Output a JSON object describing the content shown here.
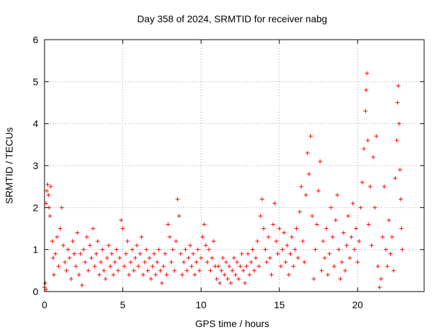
{
  "chart_data": {
    "type": "scatter",
    "title": "Day 358 of 2024, SRMTID for receiver nabg",
    "xlabel": "GPS time / hours",
    "ylabel": "SRMTID / TECUs",
    "xlim": [
      0,
      24.25
    ],
    "ylim": [
      0,
      6
    ],
    "xticks": [
      0,
      5,
      10,
      15,
      20
    ],
    "xtick_labels": [
      "0",
      "5",
      "10",
      "15",
      "20"
    ],
    "yticks": [
      0,
      1,
      2,
      3,
      4,
      5,
      6
    ],
    "ytick_labels": [
      "0",
      "1",
      "2",
      "3",
      "4",
      "5",
      "6"
    ],
    "grid": true,
    "marker": "+",
    "color": "#ff0000",
    "series": [
      {
        "name": "SRMTID",
        "points": [
          [
            0.0,
            0.1
          ],
          [
            0.05,
            0.2
          ],
          [
            0.1,
            0.05
          ],
          [
            0.1,
            2.1
          ],
          [
            0.15,
            2.4
          ],
          [
            0.2,
            2.55
          ],
          [
            0.25,
            2.3
          ],
          [
            0.3,
            2.0
          ],
          [
            0.35,
            1.8
          ],
          [
            0.4,
            2.5
          ],
          [
            0.5,
            1.2
          ],
          [
            0.55,
            0.8
          ],
          [
            0.6,
            0.4
          ],
          [
            0.7,
            0.9
          ],
          [
            0.8,
            1.3
          ],
          [
            0.9,
            0.6
          ],
          [
            1.0,
            1.5
          ],
          [
            1.1,
            2.0
          ],
          [
            1.2,
            1.1
          ],
          [
            1.3,
            0.7
          ],
          [
            1.4,
            0.5
          ],
          [
            1.5,
            1.0
          ],
          [
            1.6,
            0.8
          ],
          [
            1.7,
            0.3
          ],
          [
            1.8,
            1.2
          ],
          [
            1.9,
            0.9
          ],
          [
            2.0,
            0.6
          ],
          [
            2.1,
            1.4
          ],
          [
            2.2,
            0.4
          ],
          [
            2.3,
            0.9
          ],
          [
            2.4,
            0.15
          ],
          [
            2.5,
            1.0
          ],
          [
            2.6,
            0.7
          ],
          [
            2.7,
            1.3
          ],
          [
            2.8,
            0.5
          ],
          [
            2.9,
            1.1
          ],
          [
            3.0,
            0.8
          ],
          [
            3.1,
            1.5
          ],
          [
            3.2,
            0.6
          ],
          [
            3.3,
            0.9
          ],
          [
            3.4,
            1.2
          ],
          [
            3.5,
            0.4
          ],
          [
            3.6,
            0.7
          ],
          [
            3.7,
            1.0
          ],
          [
            3.8,
            0.5
          ],
          [
            3.9,
            0.3
          ],
          [
            4.0,
            0.8
          ],
          [
            4.1,
            1.1
          ],
          [
            4.2,
            0.6
          ],
          [
            4.3,
            0.9
          ],
          [
            4.4,
            0.4
          ],
          [
            4.5,
            0.7
          ],
          [
            4.6,
            1.0
          ],
          [
            4.7,
            0.5
          ],
          [
            4.8,
            0.8
          ],
          [
            4.9,
            1.7
          ],
          [
            5.0,
            1.5
          ],
          [
            5.1,
            0.6
          ],
          [
            5.2,
            0.9
          ],
          [
            5.3,
            1.2
          ],
          [
            5.4,
            0.4
          ],
          [
            5.5,
            0.7
          ],
          [
            5.6,
            1.0
          ],
          [
            5.7,
            0.5
          ],
          [
            5.8,
            0.8
          ],
          [
            5.9,
            1.1
          ],
          [
            6.0,
            0.6
          ],
          [
            6.1,
            0.9
          ],
          [
            6.2,
            1.3
          ],
          [
            6.3,
            0.4
          ],
          [
            6.4,
            0.7
          ],
          [
            6.5,
            1.0
          ],
          [
            6.6,
            0.5
          ],
          [
            6.7,
            0.8
          ],
          [
            6.8,
            0.3
          ],
          [
            6.9,
            0.6
          ],
          [
            7.0,
            0.9
          ],
          [
            7.1,
            0.4
          ],
          [
            7.2,
            0.7
          ],
          [
            7.3,
            1.0
          ],
          [
            7.4,
            0.5
          ],
          [
            7.5,
            0.2
          ],
          [
            7.6,
            0.6
          ],
          [
            7.7,
            0.9
          ],
          [
            7.8,
            0.4
          ],
          [
            7.9,
            1.6
          ],
          [
            8.0,
            1.3
          ],
          [
            8.1,
            0.7
          ],
          [
            8.2,
            1.0
          ],
          [
            8.3,
            0.5
          ],
          [
            8.4,
            1.2
          ],
          [
            8.5,
            2.2
          ],
          [
            8.6,
            1.8
          ],
          [
            8.7,
            0.9
          ],
          [
            8.8,
            0.4
          ],
          [
            8.9,
            0.7
          ],
          [
            9.0,
            1.0
          ],
          [
            9.1,
            0.5
          ],
          [
            9.2,
            0.8
          ],
          [
            9.3,
            1.1
          ],
          [
            9.4,
            0.6
          ],
          [
            9.5,
            0.9
          ],
          [
            9.6,
            0.4
          ],
          [
            9.7,
            0.7
          ],
          [
            9.8,
            1.0
          ],
          [
            9.9,
            0.5
          ],
          [
            10.0,
            0.8
          ],
          [
            10.1,
            1.3
          ],
          [
            10.2,
            1.6
          ],
          [
            10.3,
            1.1
          ],
          [
            10.4,
            0.7
          ],
          [
            10.5,
            1.0
          ],
          [
            10.6,
            0.5
          ],
          [
            10.7,
            0.8
          ],
          [
            10.8,
            1.2
          ],
          [
            10.9,
            0.6
          ],
          [
            11.0,
            0.3
          ],
          [
            11.1,
            0.6
          ],
          [
            11.2,
            0.2
          ],
          [
            11.3,
            0.5
          ],
          [
            11.4,
            0.8
          ],
          [
            11.5,
            0.4
          ],
          [
            11.6,
            0.7
          ],
          [
            11.7,
            0.3
          ],
          [
            11.8,
            0.6
          ],
          [
            11.9,
            0.2
          ],
          [
            12.0,
            0.5
          ],
          [
            12.1,
            0.8
          ],
          [
            12.2,
            0.4
          ],
          [
            12.3,
            0.7
          ],
          [
            12.4,
            0.3
          ],
          [
            12.5,
            0.6
          ],
          [
            12.6,
            0.9
          ],
          [
            12.7,
            0.5
          ],
          [
            12.8,
            0.2
          ],
          [
            12.9,
            0.6
          ],
          [
            13.0,
            0.9
          ],
          [
            13.1,
            0.4
          ],
          [
            13.2,
            0.7
          ],
          [
            13.3,
            1.0
          ],
          [
            13.4,
            0.5
          ],
          [
            13.5,
            0.8
          ],
          [
            13.6,
            1.2
          ],
          [
            13.7,
            0.6
          ],
          [
            13.8,
            1.8
          ],
          [
            13.9,
            2.2
          ],
          [
            14.0,
            1.5
          ],
          [
            14.1,
            1.0
          ],
          [
            14.2,
            0.7
          ],
          [
            14.3,
            1.3
          ],
          [
            14.4,
            0.8
          ],
          [
            14.5,
            0.4
          ],
          [
            14.6,
            1.6
          ],
          [
            14.7,
            2.1
          ],
          [
            14.8,
            1.2
          ],
          [
            14.9,
            0.9
          ],
          [
            15.0,
            1.5
          ],
          [
            15.1,
            0.6
          ],
          [
            15.2,
            1.0
          ],
          [
            15.3,
            1.4
          ],
          [
            15.4,
            0.7
          ],
          [
            15.5,
            1.1
          ],
          [
            15.6,
            0.4
          ],
          [
            15.7,
            0.9
          ],
          [
            15.8,
            1.3
          ],
          [
            15.9,
            0.6
          ],
          [
            16.0,
            1.0
          ],
          [
            16.1,
            1.5
          ],
          [
            16.2,
            0.8
          ],
          [
            16.3,
            1.9
          ],
          [
            16.4,
            2.5
          ],
          [
            16.5,
            1.2
          ],
          [
            16.6,
            0.7
          ],
          [
            16.7,
            2.3
          ],
          [
            16.8,
            3.3
          ],
          [
            16.9,
            2.8
          ],
          [
            17.0,
            3.7
          ],
          [
            17.1,
            1.8
          ],
          [
            17.2,
            0.3
          ],
          [
            17.3,
            1.0
          ],
          [
            17.4,
            1.6
          ],
          [
            17.5,
            2.4
          ],
          [
            17.6,
            3.1
          ],
          [
            17.7,
            0.5
          ],
          [
            17.8,
            1.2
          ],
          [
            17.9,
            0.8
          ],
          [
            18.0,
            1.5
          ],
          [
            18.1,
            0.4
          ],
          [
            18.2,
            0.9
          ],
          [
            18.3,
            2.0
          ],
          [
            18.4,
            1.3
          ],
          [
            18.5,
            0.6
          ],
          [
            18.6,
            1.7
          ],
          [
            18.7,
            2.3
          ],
          [
            18.8,
            1.0
          ],
          [
            18.9,
            0.3
          ],
          [
            19.0,
            0.7
          ],
          [
            19.1,
            1.4
          ],
          [
            19.2,
            0.5
          ],
          [
            19.3,
            1.1
          ],
          [
            19.4,
            1.8
          ],
          [
            19.5,
            0.8
          ],
          [
            19.6,
            1.3
          ],
          [
            19.7,
            2.1
          ],
          [
            19.8,
            1.0
          ],
          [
            19.9,
            1.5
          ],
          [
            20.0,
            0.7
          ],
          [
            20.1,
            1.2
          ],
          [
            20.2,
            2.0
          ],
          [
            20.3,
            2.6
          ],
          [
            20.4,
            3.4
          ],
          [
            20.5,
            4.3
          ],
          [
            20.55,
            4.8
          ],
          [
            20.6,
            5.2
          ],
          [
            20.65,
            3.6
          ],
          [
            20.7,
            1.6
          ],
          [
            20.8,
            2.5
          ],
          [
            20.9,
            1.1
          ],
          [
            21.0,
            3.2
          ],
          [
            21.1,
            2.0
          ],
          [
            21.2,
            3.7
          ],
          [
            21.3,
            0.6
          ],
          [
            21.4,
            0.1
          ],
          [
            21.5,
            0.3
          ],
          [
            21.6,
            1.3
          ],
          [
            21.7,
            2.5
          ],
          [
            21.8,
            1.0
          ],
          [
            21.9,
            0.6
          ],
          [
            22.0,
            1.7
          ],
          [
            22.1,
            0.9
          ],
          [
            22.2,
            1.3
          ],
          [
            22.3,
            0.5
          ],
          [
            22.4,
            2.7
          ],
          [
            22.5,
            3.6
          ],
          [
            22.55,
            4.5
          ],
          [
            22.6,
            4.9
          ],
          [
            22.65,
            4.0
          ],
          [
            22.7,
            2.9
          ],
          [
            22.75,
            2.2
          ],
          [
            22.8,
            1.5
          ],
          [
            22.85,
            1.0
          ]
        ]
      }
    ]
  }
}
